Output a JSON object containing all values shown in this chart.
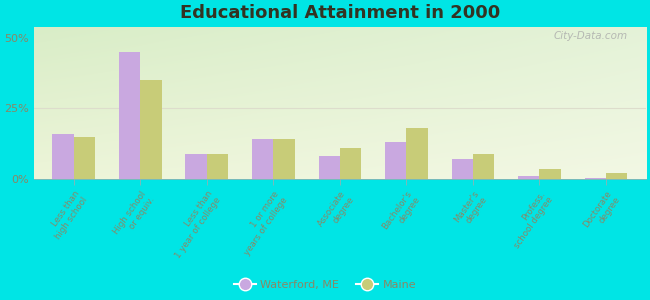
{
  "title": "Educational Attainment in 2000",
  "categories": [
    "Less than\nhigh school",
    "High school\nor equiv.",
    "Less than\n1 year of college",
    "1 or more\nyears of college",
    "Associate\ndegree",
    "Bachelor's\ndegree",
    "Master's\ndegree",
    "Profess.\nschool degree",
    "Doctorate\ndegree"
  ],
  "waterford": [
    16.0,
    45.0,
    9.0,
    14.0,
    8.0,
    13.0,
    7.0,
    1.0,
    0.5
  ],
  "maine": [
    15.0,
    35.0,
    9.0,
    14.0,
    11.0,
    18.0,
    9.0,
    3.5,
    2.0
  ],
  "waterford_color": "#c9a8e0",
  "maine_color": "#c8cc78",
  "background_color": "#00e5e5",
  "plot_bg_gradient_top": "#d8eec8",
  "plot_bg_gradient_bottom": "#eef5d8",
  "ylabel_ticks": [
    "0%",
    "25%",
    "50%"
  ],
  "yticks": [
    0,
    25,
    50
  ],
  "ylim": [
    0,
    54
  ],
  "title_fontsize": 13,
  "bar_width": 0.32,
  "legend_waterford": "Waterford, ME",
  "legend_maine": "Maine",
  "grid_color": "#ddddcc",
  "watermark": "City-Data.com",
  "tick_label_color": "#888866",
  "ytick_color": "#888866"
}
